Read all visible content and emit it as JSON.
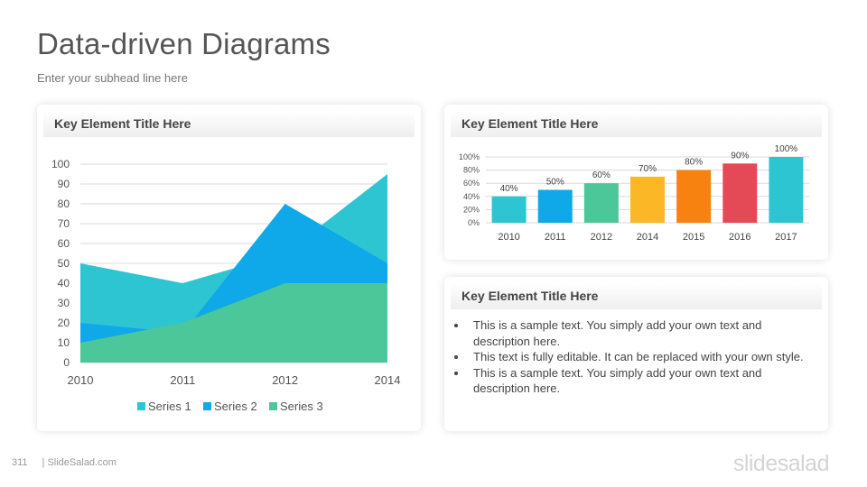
{
  "page": {
    "title": "Data-driven Diagrams",
    "subtitle": "Enter your subhead  line here",
    "page_number": "311",
    "footer_site": "| SlideSalad.com",
    "brand": "slidesalad"
  },
  "cards": {
    "left": {
      "title": "Key Element Title Here"
    },
    "top_right": {
      "title": "Key Element Title Here"
    },
    "bottom_right": {
      "title": "Key Element Title Here",
      "bullets": [
        "This is a sample text. You simply add your own text and description  here.",
        "This text is fully editable.  It can be replaced  with your own style.",
        "This is a sample text. You simply add your own text and description  here."
      ]
    }
  },
  "chart_data": [
    {
      "type": "area",
      "x": [
        "2010",
        "2011",
        "2012",
        "2014"
      ],
      "series": [
        {
          "name": "Series 1",
          "values": [
            50,
            40,
            55,
            95
          ],
          "color": "#2ec5d3"
        },
        {
          "name": "Series 2",
          "values": [
            20,
            15,
            80,
            50
          ],
          "color": "#0fa8e8"
        },
        {
          "name": "Series 3",
          "values": [
            10,
            20,
            40,
            40
          ],
          "color": "#4cc79a"
        }
      ],
      "ylim": [
        0,
        100
      ],
      "yticks": [
        0,
        10,
        20,
        30,
        40,
        50,
        60,
        70,
        80,
        90,
        100
      ],
      "grid": true,
      "legend": "bottom"
    },
    {
      "type": "bar",
      "categories": [
        "2010",
        "2011",
        "2012",
        "2014",
        "2015",
        "2016",
        "2017"
      ],
      "values": [
        40,
        50,
        60,
        70,
        80,
        90,
        100
      ],
      "data_labels": [
        "40%",
        "50%",
        "60%",
        "70%",
        "80%",
        "90%",
        "100%"
      ],
      "colors": [
        "#2ec5d3",
        "#0fa8e8",
        "#4cc79a",
        "#fbb726",
        "#f7820f",
        "#e44a55",
        "#2ec5d3"
      ],
      "ylim": [
        0,
        100
      ],
      "yticks": [
        "0%",
        "20%",
        "40%",
        "60%",
        "80%",
        "100%"
      ],
      "grid": true
    }
  ]
}
